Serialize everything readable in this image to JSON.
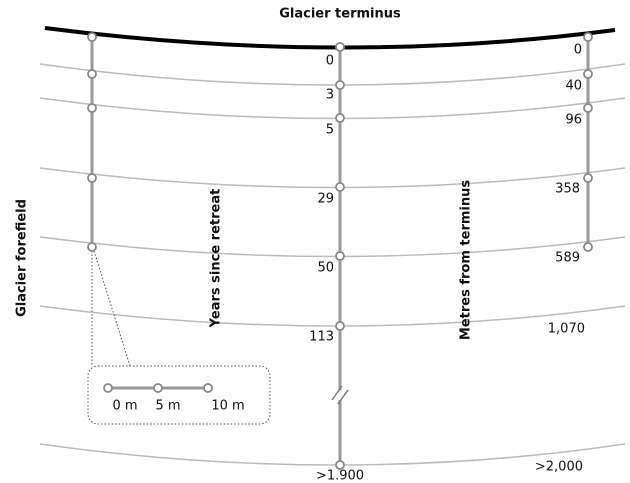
{
  "title": "Glacier terminus",
  "side_label": "Glacier forefield",
  "years_axis": {
    "label": "Years since retreat",
    "labels": [
      "0",
      "3",
      "5",
      "29",
      "50",
      "113",
      ">1.900"
    ]
  },
  "metres_axis": {
    "label": "Metres from terminus",
    "labels": [
      "0",
      "40",
      "96",
      "358",
      "589",
      "1,070",
      ">2,000"
    ]
  },
  "scale": {
    "labels": [
      "0 m",
      "5 m",
      "10 m"
    ]
  }
}
